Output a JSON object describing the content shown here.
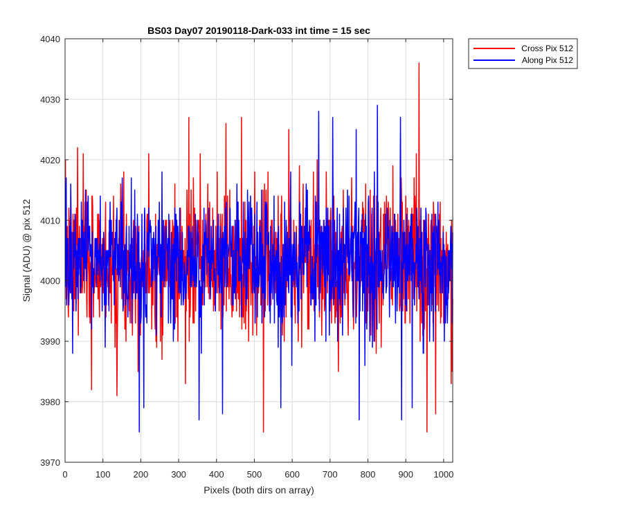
{
  "chart_data": {
    "type": "line",
    "title": "BS03 Day07 20190118-Dark-033 int time = 15 sec",
    "xlabel": "Pixels (both dirs on array)",
    "ylabel": "Signal (ADU) @ pix 512",
    "xlim": [
      0,
      1024
    ],
    "ylim": [
      3970,
      4040
    ],
    "xticks": [
      0,
      100,
      200,
      300,
      400,
      500,
      600,
      700,
      800,
      900,
      1000
    ],
    "yticks": [
      3970,
      3980,
      3990,
      4000,
      4010,
      4020,
      4030,
      4040
    ],
    "grid": true,
    "legend_position": "outside-top-right",
    "x_range": [
      1,
      1024
    ],
    "series": [
      {
        "name": "Cross Pix 512",
        "color": "#ff0000",
        "mean": 4003,
        "noise_std": 6,
        "noise_seed": 7,
        "peaks": [
          {
            "x": 935,
            "y": 4036
          },
          {
            "x": 327,
            "y": 4027
          },
          {
            "x": 425,
            "y": 4026
          },
          {
            "x": 466,
            "y": 4027
          },
          {
            "x": 591,
            "y": 4025
          },
          {
            "x": 33,
            "y": 4022
          },
          {
            "x": 956,
            "y": 3975
          },
          {
            "x": 524,
            "y": 3975
          },
          {
            "x": 70,
            "y": 3982
          },
          {
            "x": 137,
            "y": 3981
          },
          {
            "x": 318,
            "y": 3983
          },
          {
            "x": 979,
            "y": 3978
          },
          {
            "x": 1020,
            "y": 3983
          }
        ]
      },
      {
        "name": "Along Pix 512",
        "color": "#0000ff",
        "mean": 4003,
        "noise_std": 5.5,
        "noise_seed": 13,
        "peaks": [
          {
            "x": 825,
            "y": 4029
          },
          {
            "x": 670,
            "y": 4028
          },
          {
            "x": 707,
            "y": 4027
          },
          {
            "x": 769,
            "y": 4025
          },
          {
            "x": 886,
            "y": 4027
          },
          {
            "x": 196,
            "y": 3975
          },
          {
            "x": 354,
            "y": 3977
          },
          {
            "x": 777,
            "y": 3977
          },
          {
            "x": 889,
            "y": 3977
          },
          {
            "x": 416,
            "y": 3978
          },
          {
            "x": 917,
            "y": 3979
          },
          {
            "x": 208,
            "y": 3979
          },
          {
            "x": 570,
            "y": 3979
          }
        ]
      }
    ]
  }
}
